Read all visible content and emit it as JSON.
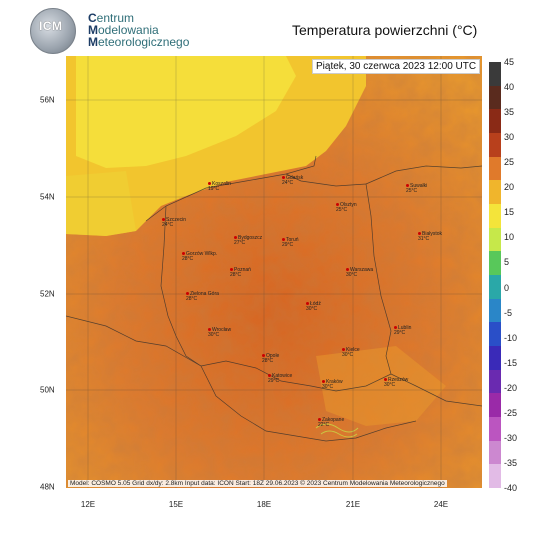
{
  "header": {
    "org_line1": "entrum",
    "org_line1_initial": "C",
    "org_line2": "odelowania",
    "org_line2_initial": "M",
    "org_line3": "eteorologicznego",
    "org_line3_initial": "M",
    "logo_text": "ICM",
    "title": "Temperatura powierzchni (°C)"
  },
  "map": {
    "datetime": "Piątek, 30 czerwca 2023 12:00 UTC",
    "footer": "Model: COSMO 5.05  Grid dx/dy: 2.8km  Input data: ICON  Start: 18Z 29.06.2023  © 2023 Centrum Modelowania Meteorologicznego",
    "lat_labels": [
      "56N",
      "54N",
      "52N",
      "50N",
      "48N"
    ],
    "lon_labels": [
      "12E",
      "15E",
      "18E",
      "21E",
      "24E"
    ],
    "cities": [
      {
        "name": "Koszalin",
        "temp": "19°C"
      },
      {
        "name": "Gdańsk",
        "temp": "24°C"
      },
      {
        "name": "Olsztyn",
        "temp": "25°C"
      },
      {
        "name": "Suwałki",
        "temp": "25°C"
      },
      {
        "name": "Szczecin",
        "temp": "24°C"
      },
      {
        "name": "Bydgoszcz",
        "temp": "27°C"
      },
      {
        "name": "Toruń",
        "temp": "29°C"
      },
      {
        "name": "Białystok",
        "temp": "31°C"
      },
      {
        "name": "Gorzów Wlkp.",
        "temp": "28°C"
      },
      {
        "name": "Poznań",
        "temp": "28°C"
      },
      {
        "name": "Warszawa",
        "temp": "30°C"
      },
      {
        "name": "Zielona Góra",
        "temp": "28°C"
      },
      {
        "name": "Łódź",
        "temp": "30°C"
      },
      {
        "name": "Lublin",
        "temp": "29°C"
      },
      {
        "name": "Wrocław",
        "temp": "30°C"
      },
      {
        "name": "Kielce",
        "temp": "30°C"
      },
      {
        "name": "Opole",
        "temp": "28°C"
      },
      {
        "name": "Katowice",
        "temp": "29°C"
      },
      {
        "name": "Kraków",
        "temp": "30°C"
      },
      {
        "name": "Rzeszów",
        "temp": "30°C"
      },
      {
        "name": "Zakopane",
        "temp": "22°C"
      }
    ]
  },
  "legend": {
    "values": [
      "45",
      "40",
      "35",
      "30",
      "25",
      "20",
      "15",
      "10",
      "5",
      "0",
      "-5",
      "-10",
      "-15",
      "-20",
      "-25",
      "-30",
      "-35",
      "-40"
    ],
    "colors": [
      "#3a3a3a",
      "#5a2b1e",
      "#8a2a16",
      "#b8401c",
      "#e07a2b",
      "#f0b52c",
      "#f4e43a",
      "#c6e84a",
      "#58c85a",
      "#2aa8a8",
      "#2a86c8",
      "#2a4fc8",
      "#3a2ab8",
      "#6a2ab0",
      "#9a2aa8",
      "#bb55c0",
      "#cc88d0",
      "#e2bbe6"
    ]
  }
}
